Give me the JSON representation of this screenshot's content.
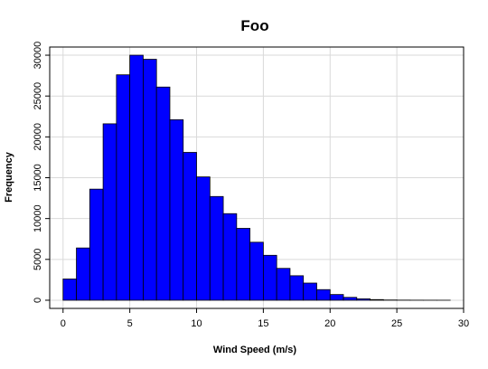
{
  "chart_data": {
    "type": "bar",
    "subtype": "histogram",
    "title": "Foo",
    "xlabel": "Wind Speed (m/s)",
    "ylabel": "Frequency",
    "xlim": [
      -1,
      30
    ],
    "ylim": [
      -1000,
      31000
    ],
    "x_ticks": [
      0,
      5,
      10,
      15,
      20,
      25,
      30
    ],
    "y_ticks": [
      0,
      5000,
      10000,
      15000,
      20000,
      25000,
      30000
    ],
    "grid": true,
    "bin_width": 1,
    "bin_starts": [
      0,
      1,
      2,
      3,
      4,
      5,
      6,
      7,
      8,
      9,
      10,
      11,
      12,
      13,
      14,
      15,
      16,
      17,
      18,
      19,
      20,
      21,
      22,
      23,
      24,
      25,
      26,
      27,
      28
    ],
    "values": [
      2600,
      6400,
      13600,
      21600,
      27600,
      30000,
      29500,
      26100,
      22100,
      18100,
      15100,
      12700,
      10600,
      8800,
      7100,
      5500,
      3900,
      3000,
      2100,
      1300,
      700,
      350,
      170,
      80,
      30,
      15,
      8,
      4,
      2
    ],
    "bar_color": "#0000ff",
    "edge_color": "#000000"
  }
}
